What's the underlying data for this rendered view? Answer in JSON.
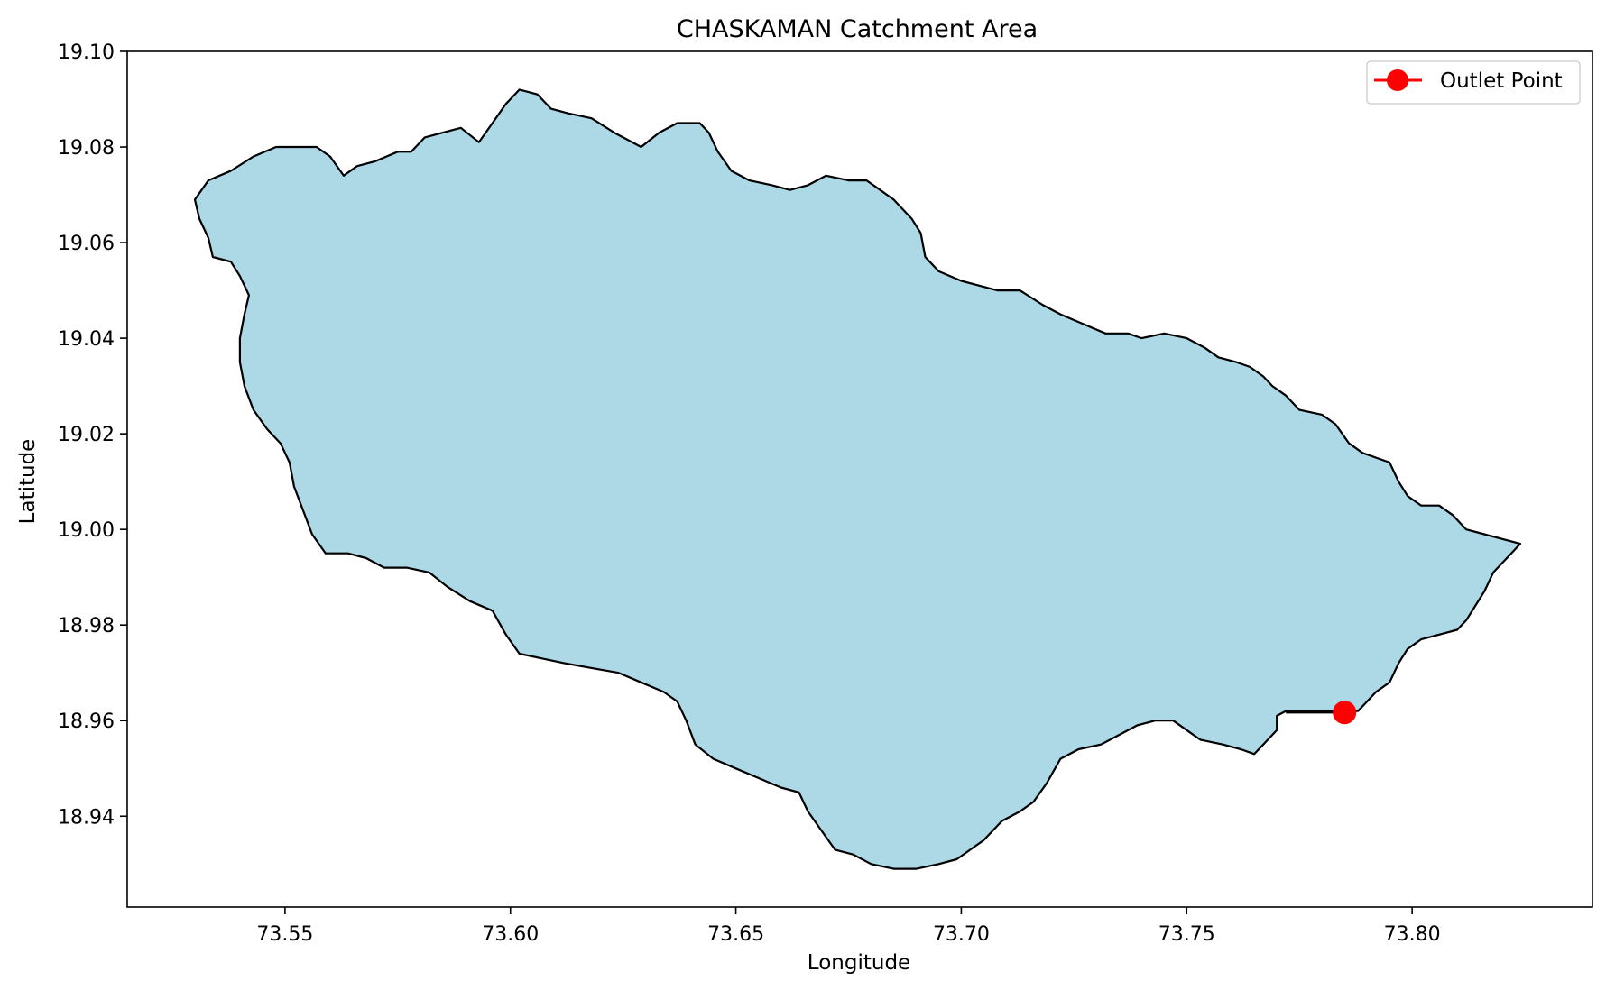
{
  "chart_data": {
    "type": "map",
    "title": "CHASKAMAN Catchment Area",
    "xlabel": "Longitude",
    "ylabel": "Latitude",
    "xlim": [
      73.515,
      73.84
    ],
    "ylim": [
      18.921,
      19.1
    ],
    "x_ticks": [
      73.55,
      73.6,
      73.65,
      73.7,
      73.75,
      73.8
    ],
    "x_tick_labels": [
      "73.55",
      "73.60",
      "73.65",
      "73.70",
      "73.75",
      "73.80"
    ],
    "y_ticks": [
      18.94,
      18.96,
      18.98,
      19.0,
      19.02,
      19.04,
      19.06,
      19.08,
      19.1
    ],
    "y_tick_labels": [
      "18.94",
      "18.96",
      "18.98",
      "19.00",
      "19.02",
      "19.04",
      "19.06",
      "19.08",
      "19.10"
    ],
    "grid": false,
    "legend": {
      "position": "top-right",
      "entries": [
        "Outlet Point"
      ]
    },
    "catchment": {
      "fill_color": "#add8e6",
      "edge_color": "#000000",
      "boundary": [
        [
          73.53,
          19.069
        ],
        [
          73.533,
          19.073
        ],
        [
          73.538,
          19.075
        ],
        [
          73.543,
          19.078
        ],
        [
          73.548,
          19.08
        ],
        [
          73.553,
          19.08
        ],
        [
          73.557,
          19.08
        ],
        [
          73.56,
          19.078
        ],
        [
          73.563,
          19.074
        ],
        [
          73.566,
          19.076
        ],
        [
          73.57,
          19.077
        ],
        [
          73.575,
          19.079
        ],
        [
          73.578,
          19.079
        ],
        [
          73.581,
          19.082
        ],
        [
          73.585,
          19.083
        ],
        [
          73.589,
          19.084
        ],
        [
          73.593,
          19.081
        ],
        [
          73.596,
          19.085
        ],
        [
          73.599,
          19.089
        ],
        [
          73.602,
          19.092
        ],
        [
          73.606,
          19.091
        ],
        [
          73.609,
          19.088
        ],
        [
          73.613,
          19.087
        ],
        [
          73.618,
          19.086
        ],
        [
          73.623,
          19.083
        ],
        [
          73.629,
          19.08
        ],
        [
          73.633,
          19.083
        ],
        [
          73.637,
          19.085
        ],
        [
          73.642,
          19.085
        ],
        [
          73.644,
          19.083
        ],
        [
          73.646,
          19.079
        ],
        [
          73.649,
          19.075
        ],
        [
          73.653,
          19.073
        ],
        [
          73.658,
          19.072
        ],
        [
          73.662,
          19.071
        ],
        [
          73.666,
          19.072
        ],
        [
          73.67,
          19.074
        ],
        [
          73.675,
          19.073
        ],
        [
          73.679,
          19.073
        ],
        [
          73.682,
          19.071
        ],
        [
          73.685,
          19.069
        ],
        [
          73.689,
          19.065
        ],
        [
          73.691,
          19.062
        ],
        [
          73.692,
          19.057
        ],
        [
          73.695,
          19.054
        ],
        [
          73.7,
          19.052
        ],
        [
          73.704,
          19.051
        ],
        [
          73.708,
          19.05
        ],
        [
          73.713,
          19.05
        ],
        [
          73.718,
          19.047
        ],
        [
          73.722,
          19.045
        ],
        [
          73.727,
          19.043
        ],
        [
          73.732,
          19.041
        ],
        [
          73.737,
          19.041
        ],
        [
          73.74,
          19.04
        ],
        [
          73.745,
          19.041
        ],
        [
          73.75,
          19.04
        ],
        [
          73.754,
          19.038
        ],
        [
          73.757,
          19.036
        ],
        [
          73.761,
          19.035
        ],
        [
          73.764,
          19.034
        ],
        [
          73.767,
          19.032
        ],
        [
          73.769,
          19.03
        ],
        [
          73.772,
          19.028
        ],
        [
          73.775,
          19.025
        ],
        [
          73.78,
          19.024
        ],
        [
          73.783,
          19.022
        ],
        [
          73.786,
          19.018
        ],
        [
          73.789,
          19.016
        ],
        [
          73.792,
          19.015
        ],
        [
          73.795,
          19.014
        ],
        [
          73.797,
          19.01
        ],
        [
          73.799,
          19.007
        ],
        [
          73.802,
          19.005
        ],
        [
          73.806,
          19.005
        ],
        [
          73.809,
          19.003
        ],
        [
          73.812,
          19.0
        ],
        [
          73.816,
          18.999
        ],
        [
          73.82,
          18.998
        ],
        [
          73.824,
          18.997
        ],
        [
          73.821,
          18.994
        ],
        [
          73.818,
          18.991
        ],
        [
          73.816,
          18.987
        ],
        [
          73.814,
          18.984
        ],
        [
          73.812,
          18.981
        ],
        [
          73.81,
          18.979
        ],
        [
          73.806,
          18.978
        ],
        [
          73.802,
          18.977
        ],
        [
          73.799,
          18.975
        ],
        [
          73.797,
          18.972
        ],
        [
          73.795,
          18.968
        ],
        [
          73.792,
          18.966
        ],
        [
          73.79,
          18.964
        ],
        [
          73.788,
          18.962
        ],
        [
          73.785,
          18.962
        ],
        [
          73.78,
          18.962
        ],
        [
          73.776,
          18.962
        ],
        [
          73.772,
          18.962
        ],
        [
          73.77,
          18.961
        ],
        [
          73.77,
          18.958
        ],
        [
          73.768,
          18.956
        ],
        [
          73.765,
          18.953
        ],
        [
          73.762,
          18.954
        ],
        [
          73.758,
          18.955
        ],
        [
          73.753,
          18.956
        ],
        [
          73.75,
          18.958
        ],
        [
          73.747,
          18.96
        ],
        [
          73.743,
          18.96
        ],
        [
          73.739,
          18.959
        ],
        [
          73.735,
          18.957
        ],
        [
          73.731,
          18.955
        ],
        [
          73.726,
          18.954
        ],
        [
          73.722,
          18.952
        ],
        [
          73.719,
          18.947
        ],
        [
          73.716,
          18.943
        ],
        [
          73.713,
          18.941
        ],
        [
          73.709,
          18.939
        ],
        [
          73.705,
          18.935
        ],
        [
          73.702,
          18.933
        ],
        [
          73.699,
          18.931
        ],
        [
          73.695,
          18.93
        ],
        [
          73.69,
          18.929
        ],
        [
          73.685,
          18.929
        ],
        [
          73.68,
          18.93
        ],
        [
          73.676,
          18.932
        ],
        [
          73.672,
          18.933
        ],
        [
          73.669,
          18.937
        ],
        [
          73.666,
          18.941
        ],
        [
          73.664,
          18.945
        ],
        [
          73.66,
          18.946
        ],
        [
          73.655,
          18.948
        ],
        [
          73.65,
          18.95
        ],
        [
          73.645,
          18.952
        ],
        [
          73.641,
          18.955
        ],
        [
          73.639,
          18.96
        ],
        [
          73.637,
          18.964
        ],
        [
          73.634,
          18.966
        ],
        [
          73.629,
          18.968
        ],
        [
          73.624,
          18.97
        ],
        [
          73.618,
          18.971
        ],
        [
          73.612,
          18.972
        ],
        [
          73.607,
          18.973
        ],
        [
          73.602,
          18.974
        ],
        [
          73.599,
          18.978
        ],
        [
          73.596,
          18.983
        ],
        [
          73.591,
          18.985
        ],
        [
          73.586,
          18.988
        ],
        [
          73.582,
          18.991
        ],
        [
          73.577,
          18.992
        ],
        [
          73.572,
          18.992
        ],
        [
          73.568,
          18.994
        ],
        [
          73.564,
          18.995
        ],
        [
          73.559,
          18.995
        ],
        [
          73.556,
          18.999
        ],
        [
          73.554,
          19.004
        ],
        [
          73.552,
          19.009
        ],
        [
          73.551,
          19.014
        ],
        [
          73.549,
          19.018
        ],
        [
          73.546,
          19.021
        ],
        [
          73.543,
          19.025
        ],
        [
          73.541,
          19.03
        ],
        [
          73.54,
          19.035
        ],
        [
          73.54,
          19.04
        ],
        [
          73.541,
          19.045
        ],
        [
          73.542,
          19.049
        ],
        [
          73.54,
          19.053
        ],
        [
          73.538,
          19.056
        ],
        [
          73.534,
          19.057
        ],
        [
          73.533,
          19.061
        ],
        [
          73.531,
          19.065
        ]
      ]
    },
    "outlet_point": {
      "label": "Outlet Point",
      "lon": 73.785,
      "lat": 18.9617,
      "color": "#ff0000"
    }
  }
}
